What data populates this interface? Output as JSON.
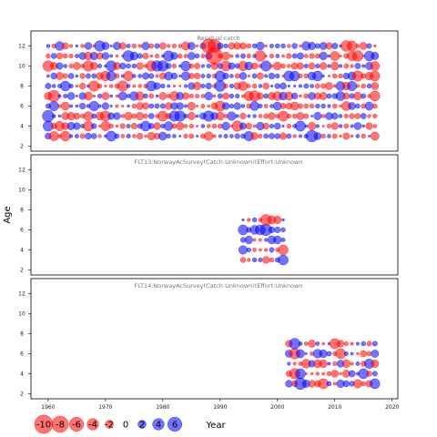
{
  "chart_data": {
    "type": "scatter",
    "subtype": "bubble-residuals",
    "xlabel": "Year",
    "ylabel": "Age",
    "xlim": [
      1957,
      2021
    ],
    "ylim": [
      1.5,
      13.5
    ],
    "x_ticks": [
      1960,
      1970,
      1980,
      1990,
      2000,
      2010,
      2020
    ],
    "y_ticks": [
      2,
      4,
      6,
      8,
      10,
      12
    ],
    "colors": {
      "positive": "#0000ff",
      "negative": "#ff0000"
    },
    "legend": {
      "values": [
        -10,
        -8,
        -6,
        -4,
        -2,
        0,
        2,
        4,
        6
      ],
      "labels": [
        "-10",
        "-8",
        "-6",
        "-4",
        "-2",
        "0",
        "2",
        "4",
        "6"
      ]
    },
    "panels": [
      {
        "title": "Residual catch",
        "years": [
          1960,
          2017
        ],
        "ages": [
          3,
          12
        ],
        "notable_points": [
          {
            "year": 1989,
            "age": 11,
            "value": -8
          },
          {
            "year": 1988,
            "age": 12,
            "value": -6
          },
          {
            "year": 1989,
            "age": 12,
            "value": -5
          },
          {
            "year": 1961,
            "age": 7,
            "value": -4
          },
          {
            "year": 1960,
            "age": 5,
            "value": 4
          },
          {
            "year": 2006,
            "age": 3,
            "value": 4
          }
        ]
      },
      {
        "title": "FLT13:NorwayAcSurvey(Catch:Unknown)(Effort:Unknown",
        "years": [
          1994,
          2001
        ],
        "ages": [
          3,
          7
        ],
        "notable_points": [
          {
            "year": 1998,
            "age": 6,
            "value": 4
          },
          {
            "year": 1997,
            "age": 6,
            "value": 3
          },
          {
            "year": 2001,
            "age": 3,
            "value": 3
          },
          {
            "year": 2001,
            "age": 4,
            "value": -3
          }
        ]
      },
      {
        "title": "FLT14:NorwayAcSurvey(Catch:Unknown)(Effort:Unknown",
        "years": [
          2002,
          2017
        ],
        "ages": [
          3,
          7
        ],
        "notable_points": [
          {
            "year": 2004,
            "age": 3,
            "value": 4
          },
          {
            "year": 2004,
            "age": 4,
            "value": 3
          },
          {
            "year": 2015,
            "age": 4,
            "value": 3
          }
        ]
      }
    ]
  }
}
